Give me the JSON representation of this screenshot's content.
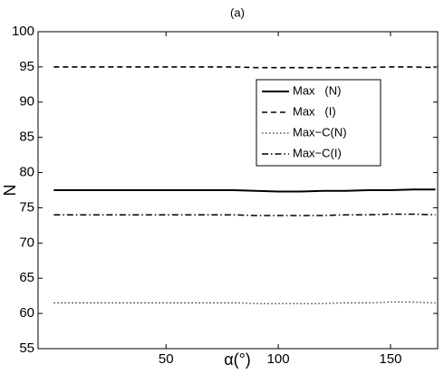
{
  "chart_data": {
    "type": "line",
    "title": "(a)",
    "x_label": "α(°)",
    "y_label": "N",
    "x": [
      0,
      10,
      20,
      30,
      40,
      50,
      60,
      70,
      80,
      90,
      100,
      110,
      120,
      130,
      140,
      150,
      160,
      170
    ],
    "series": [
      {
        "name": "Max   (N)",
        "color": "#000000",
        "style": "solid",
        "values": [
          77.5,
          77.5,
          77.5,
          77.5,
          77.5,
          77.5,
          77.5,
          77.5,
          77.5,
          77.4,
          77.3,
          77.3,
          77.4,
          77.4,
          77.5,
          77.5,
          77.6,
          77.6
        ]
      },
      {
        "name": "Max   (I)",
        "color": "#000000",
        "style": "dashed",
        "values": [
          95,
          95,
          95,
          95,
          95,
          95,
          95,
          95,
          95,
          94.9,
          94.9,
          94.9,
          94.9,
          94.9,
          94.9,
          95,
          95,
          94.9
        ]
      },
      {
        "name": "Max−C(N)",
        "color": "#000000",
        "style": "dotted",
        "values": [
          61.5,
          61.5,
          61.5,
          61.5,
          61.5,
          61.5,
          61.5,
          61.5,
          61.5,
          61.4,
          61.4,
          61.4,
          61.4,
          61.5,
          61.5,
          61.6,
          61.6,
          61.5
        ]
      },
      {
        "name": "Max−C(I)",
        "color": "#000000",
        "style": "dashdot",
        "values": [
          74,
          74,
          74,
          74,
          74,
          74,
          74,
          74,
          74,
          73.9,
          73.9,
          73.9,
          73.9,
          74,
          74,
          74.1,
          74.1,
          74
        ]
      }
    ],
    "xlim": [
      -7,
      171
    ],
    "xticks": [
      50,
      100,
      150
    ],
    "ylim": [
      55,
      100
    ],
    "yticks": [
      55,
      60,
      65,
      70,
      75,
      80,
      85,
      90,
      95,
      100
    ],
    "legend": "upper-right"
  }
}
